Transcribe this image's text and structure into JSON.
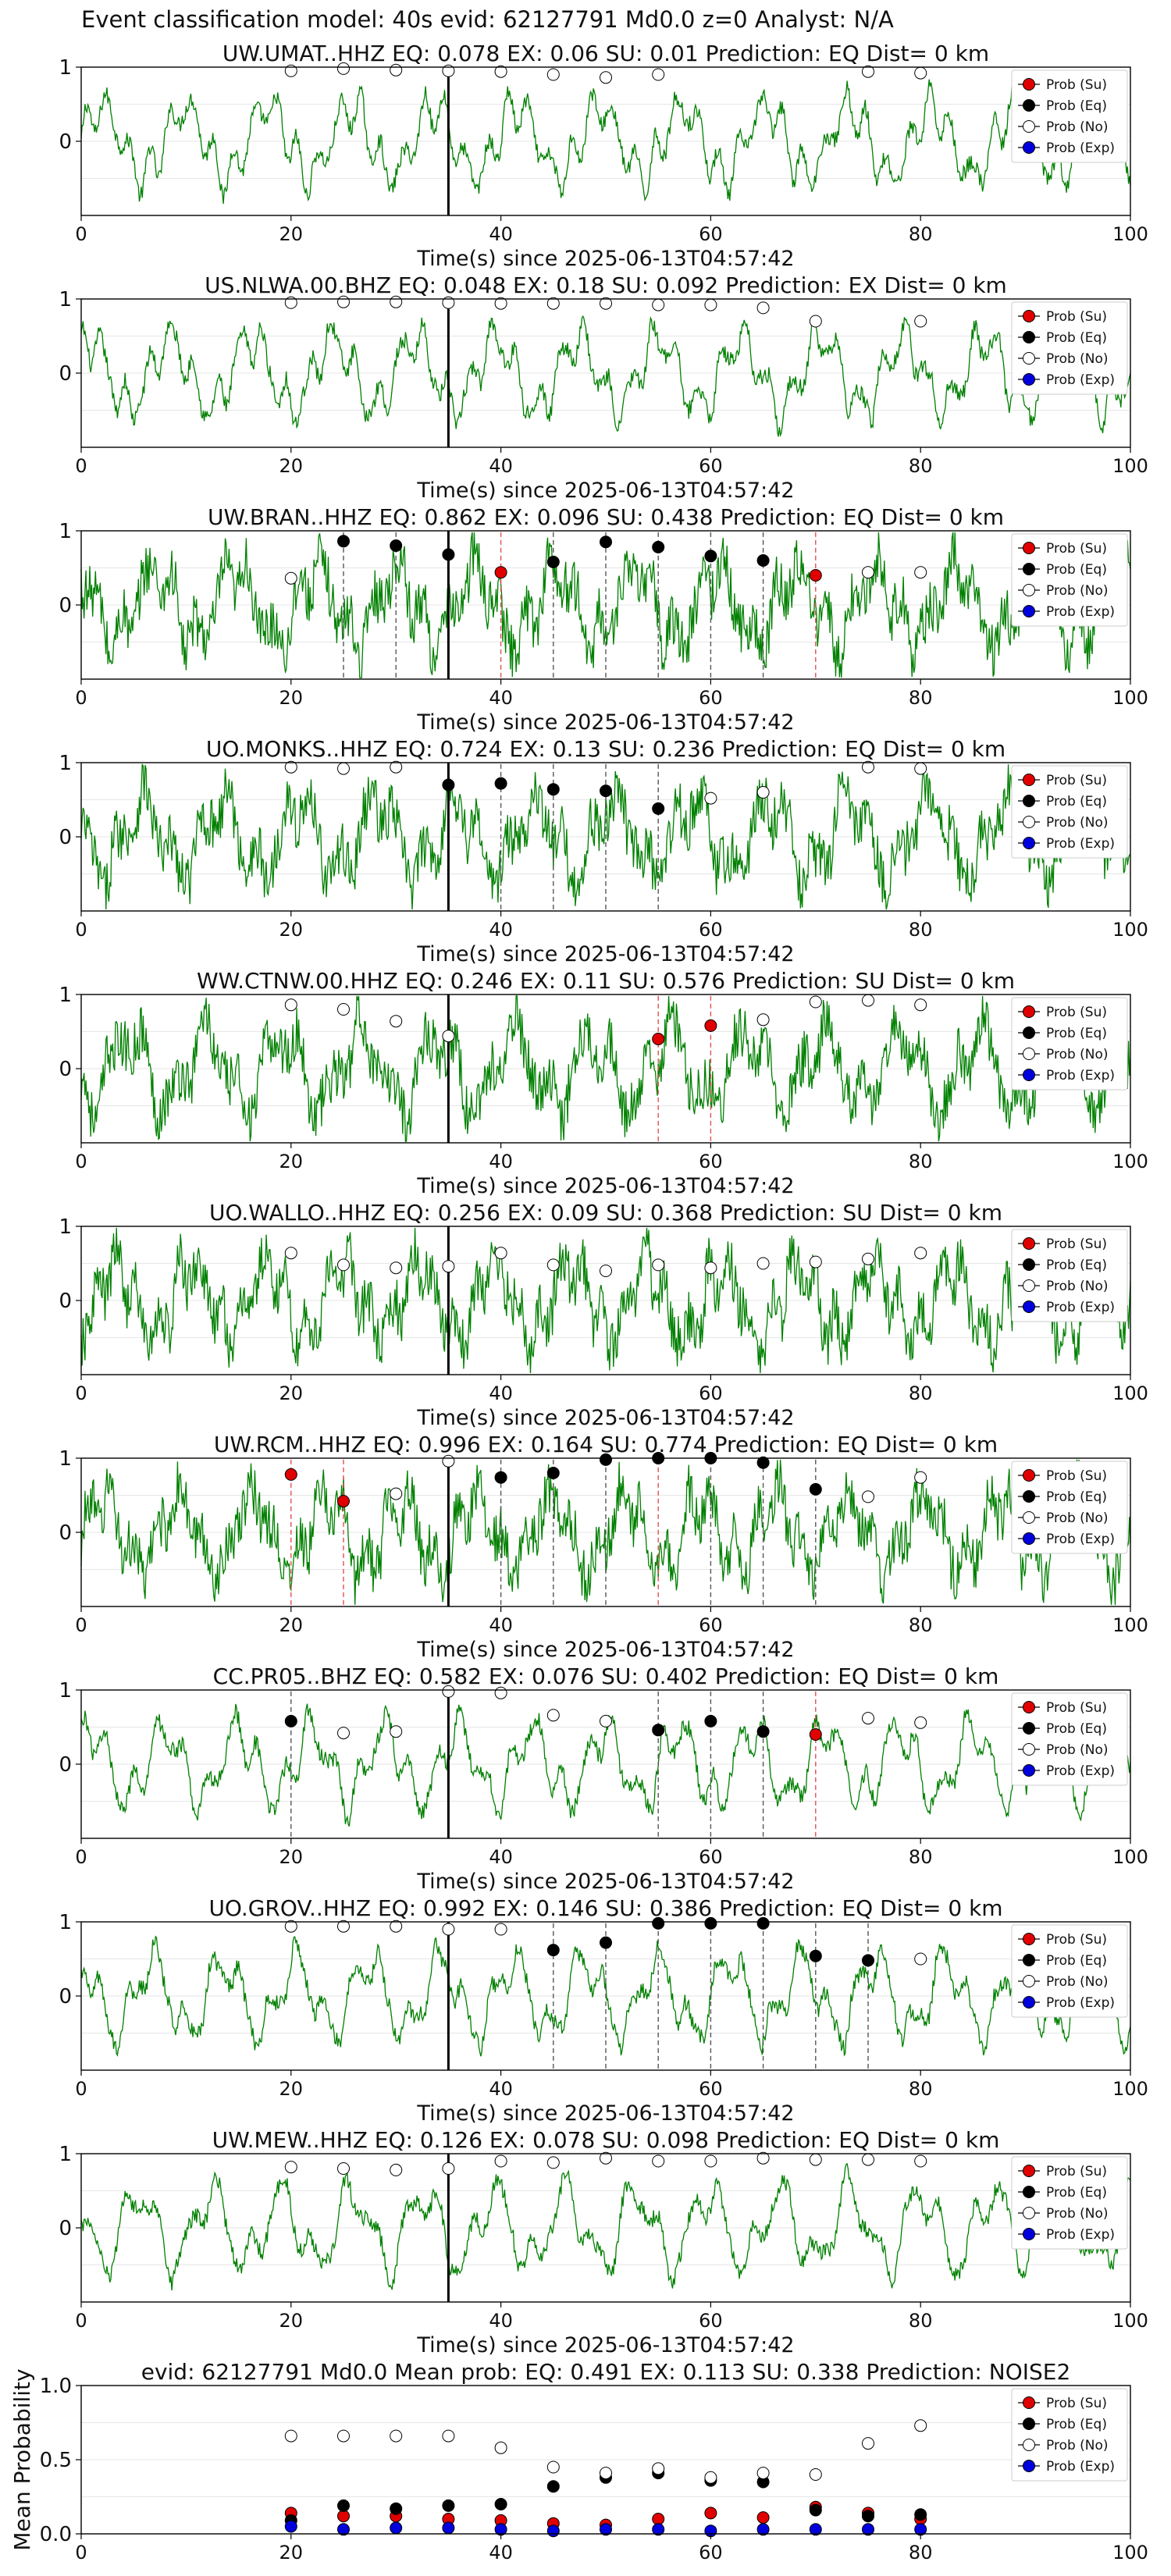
{
  "figure": {
    "suptitle": "Event classification model: 40s evid: 62127791 Md0.0 z=0 Analyst: N/A",
    "legend": [
      "Prob (Su)",
      "Prob (Eq)",
      "Prob (No)",
      "Prob (Exp)"
    ],
    "colors": {
      "trace": "#008000",
      "su": "#e00000",
      "eq": "#000000",
      "no": "#ffffff",
      "exp": "#0000dd"
    }
  },
  "chart_data": [
    {
      "type": "line",
      "title": "UW.UMAT..HHZ   EQ: 0.078  EX: 0.06  SU: 0.01   Prediction: EQ    Dist= 0 km",
      "xlabel": "Time(s) since 2025-06-13T04:57:42",
      "xlim": [
        0,
        100
      ],
      "ylim": [
        -1,
        1
      ],
      "xticks": [
        0,
        20,
        40,
        60,
        80,
        100
      ],
      "yticks": [
        0,
        1
      ],
      "grid": true,
      "legend": "top-right",
      "vline": 35,
      "points": [
        {
          "x": 20,
          "y": 0.95,
          "c": "no"
        },
        {
          "x": 25,
          "y": 0.98,
          "c": "no"
        },
        {
          "x": 30,
          "y": 0.96,
          "c": "no"
        },
        {
          "x": 35,
          "y": 0.95,
          "c": "no"
        },
        {
          "x": 40,
          "y": 0.94,
          "c": "no"
        },
        {
          "x": 45,
          "y": 0.9,
          "c": "no"
        },
        {
          "x": 50,
          "y": 0.86,
          "c": "no"
        },
        {
          "x": 55,
          "y": 0.9,
          "c": "no"
        },
        {
          "x": 75,
          "y": 0.94,
          "c": "no"
        },
        {
          "x": 80,
          "y": 0.92,
          "c": "no"
        }
      ],
      "dashed": []
    },
    {
      "type": "line",
      "title": "US.NLWA.00.BHZ   EQ: 0.048  EX: 0.18  SU: 0.092   Prediction: EX    Dist= 0 km",
      "xlabel": "Time(s) since 2025-06-13T04:57:42",
      "xlim": [
        0,
        100
      ],
      "ylim": [
        -1,
        1
      ],
      "xticks": [
        0,
        20,
        40,
        60,
        80,
        100
      ],
      "yticks": [
        0,
        1
      ],
      "grid": true,
      "legend": "top-right",
      "vline": 35,
      "points": [
        {
          "x": 20,
          "y": 0.95,
          "c": "no"
        },
        {
          "x": 25,
          "y": 0.96,
          "c": "no"
        },
        {
          "x": 30,
          "y": 0.96,
          "c": "no"
        },
        {
          "x": 35,
          "y": 0.95,
          "c": "no"
        },
        {
          "x": 40,
          "y": 0.94,
          "c": "no"
        },
        {
          "x": 45,
          "y": 0.94,
          "c": "no"
        },
        {
          "x": 50,
          "y": 0.94,
          "c": "no"
        },
        {
          "x": 55,
          "y": 0.92,
          "c": "no"
        },
        {
          "x": 60,
          "y": 0.92,
          "c": "no"
        },
        {
          "x": 65,
          "y": 0.88,
          "c": "no"
        },
        {
          "x": 70,
          "y": 0.7,
          "c": "no"
        },
        {
          "x": 80,
          "y": 0.7,
          "c": "no"
        }
      ],
      "dashed": []
    },
    {
      "type": "line",
      "title": "UW.BRAN..HHZ   EQ: 0.862  EX: 0.096  SU: 0.438   Prediction: EQ    Dist= 0 km",
      "xlabel": "Time(s) since 2025-06-13T04:57:42",
      "xlim": [
        0,
        100
      ],
      "ylim": [
        -1,
        1
      ],
      "xticks": [
        0,
        20,
        40,
        60,
        80,
        100
      ],
      "yticks": [
        0,
        1
      ],
      "grid": true,
      "legend": "top-right",
      "vline": 35,
      "points": [
        {
          "x": 20,
          "y": 0.36,
          "c": "no"
        },
        {
          "x": 25,
          "y": 0.86,
          "c": "eq"
        },
        {
          "x": 30,
          "y": 0.8,
          "c": "eq"
        },
        {
          "x": 35,
          "y": 0.68,
          "c": "eq"
        },
        {
          "x": 40,
          "y": 0.44,
          "c": "su"
        },
        {
          "x": 45,
          "y": 0.58,
          "c": "eq"
        },
        {
          "x": 50,
          "y": 0.85,
          "c": "eq"
        },
        {
          "x": 55,
          "y": 0.78,
          "c": "eq"
        },
        {
          "x": 60,
          "y": 0.66,
          "c": "eq"
        },
        {
          "x": 65,
          "y": 0.6,
          "c": "eq"
        },
        {
          "x": 70,
          "y": 0.4,
          "c": "su"
        },
        {
          "x": 75,
          "y": 0.44,
          "c": "no"
        },
        {
          "x": 80,
          "y": 0.44,
          "c": "no"
        }
      ],
      "dashed": [
        {
          "x": 25,
          "c": "eq"
        },
        {
          "x": 30,
          "c": "eq"
        },
        {
          "x": 40,
          "c": "su"
        },
        {
          "x": 45,
          "c": "eq"
        },
        {
          "x": 50,
          "c": "eq"
        },
        {
          "x": 55,
          "c": "eq"
        },
        {
          "x": 60,
          "c": "eq"
        },
        {
          "x": 65,
          "c": "eq"
        },
        {
          "x": 70,
          "c": "su"
        }
      ]
    },
    {
      "type": "line",
      "title": "UO.MONKS..HHZ   EQ: 0.724  EX: 0.13  SU: 0.236   Prediction: EQ    Dist= 0 km",
      "xlabel": "Time(s) since 2025-06-13T04:57:42",
      "xlim": [
        0,
        100
      ],
      "ylim": [
        -1,
        1
      ],
      "xticks": [
        0,
        20,
        40,
        60,
        80,
        100
      ],
      "yticks": [
        0,
        1
      ],
      "grid": true,
      "legend": "top-right",
      "vline": 35,
      "points": [
        {
          "x": 20,
          "y": 0.94,
          "c": "no"
        },
        {
          "x": 25,
          "y": 0.92,
          "c": "no"
        },
        {
          "x": 30,
          "y": 0.94,
          "c": "no"
        },
        {
          "x": 35,
          "y": 0.7,
          "c": "eq"
        },
        {
          "x": 40,
          "y": 0.72,
          "c": "eq"
        },
        {
          "x": 45,
          "y": 0.64,
          "c": "eq"
        },
        {
          "x": 50,
          "y": 0.62,
          "c": "eq"
        },
        {
          "x": 55,
          "y": 0.38,
          "c": "eq"
        },
        {
          "x": 60,
          "y": 0.52,
          "c": "no"
        },
        {
          "x": 65,
          "y": 0.6,
          "c": "no"
        },
        {
          "x": 75,
          "y": 0.94,
          "c": "no"
        },
        {
          "x": 80,
          "y": 0.92,
          "c": "no"
        }
      ],
      "dashed": [
        {
          "x": 40,
          "c": "eq"
        },
        {
          "x": 45,
          "c": "eq"
        },
        {
          "x": 50,
          "c": "eq"
        },
        {
          "x": 55,
          "c": "eq"
        }
      ]
    },
    {
      "type": "line",
      "title": "WW.CTNW.00.HHZ   EQ: 0.246  EX: 0.11  SU: 0.576   Prediction: SU    Dist= 0 km",
      "xlabel": "Time(s) since 2025-06-13T04:57:42",
      "xlim": [
        0,
        100
      ],
      "ylim": [
        -1,
        1
      ],
      "xticks": [
        0,
        20,
        40,
        60,
        80,
        100
      ],
      "yticks": [
        0,
        1
      ],
      "grid": true,
      "legend": "top-right",
      "vline": 35,
      "points": [
        {
          "x": 20,
          "y": 0.86,
          "c": "no"
        },
        {
          "x": 25,
          "y": 0.8,
          "c": "no"
        },
        {
          "x": 30,
          "y": 0.64,
          "c": "no"
        },
        {
          "x": 35,
          "y": 0.44,
          "c": "no"
        },
        {
          "x": 55,
          "y": 0.4,
          "c": "su"
        },
        {
          "x": 60,
          "y": 0.58,
          "c": "su"
        },
        {
          "x": 65,
          "y": 0.66,
          "c": "no"
        },
        {
          "x": 70,
          "y": 0.9,
          "c": "no"
        },
        {
          "x": 75,
          "y": 0.92,
          "c": "no"
        },
        {
          "x": 80,
          "y": 0.86,
          "c": "no"
        }
      ],
      "dashed": [
        {
          "x": 55,
          "c": "su"
        },
        {
          "x": 60,
          "c": "su"
        }
      ]
    },
    {
      "type": "line",
      "title": "UO.WALLO..HHZ   EQ: 0.256  EX: 0.09  SU: 0.368   Prediction: SU    Dist= 0 km",
      "xlabel": "Time(s) since 2025-06-13T04:57:42",
      "xlim": [
        0,
        100
      ],
      "ylim": [
        -1,
        1
      ],
      "xticks": [
        0,
        20,
        40,
        60,
        80,
        100
      ],
      "yticks": [
        0,
        1
      ],
      "grid": true,
      "legend": "top-right",
      "vline": 35,
      "points": [
        {
          "x": 20,
          "y": 0.64,
          "c": "no"
        },
        {
          "x": 25,
          "y": 0.48,
          "c": "no"
        },
        {
          "x": 30,
          "y": 0.44,
          "c": "no"
        },
        {
          "x": 35,
          "y": 0.46,
          "c": "no"
        },
        {
          "x": 40,
          "y": 0.64,
          "c": "no"
        },
        {
          "x": 45,
          "y": 0.48,
          "c": "no"
        },
        {
          "x": 50,
          "y": 0.4,
          "c": "no"
        },
        {
          "x": 55,
          "y": 0.48,
          "c": "no"
        },
        {
          "x": 60,
          "y": 0.44,
          "c": "no"
        },
        {
          "x": 65,
          "y": 0.5,
          "c": "no"
        },
        {
          "x": 70,
          "y": 0.52,
          "c": "no"
        },
        {
          "x": 75,
          "y": 0.56,
          "c": "no"
        },
        {
          "x": 80,
          "y": 0.64,
          "c": "no"
        }
      ],
      "dashed": []
    },
    {
      "type": "line",
      "title": "UW.RCM..HHZ   EQ: 0.996  EX: 0.164  SU: 0.774   Prediction: EQ    Dist= 0 km",
      "xlabel": "Time(s) since 2025-06-13T04:57:42",
      "xlim": [
        0,
        100
      ],
      "ylim": [
        -1,
        1
      ],
      "xticks": [
        0,
        20,
        40,
        60,
        80,
        100
      ],
      "yticks": [
        0,
        1
      ],
      "grid": true,
      "legend": "top-right",
      "vline": 35,
      "points": [
        {
          "x": 20,
          "y": 0.78,
          "c": "su"
        },
        {
          "x": 25,
          "y": 0.42,
          "c": "su"
        },
        {
          "x": 30,
          "y": 0.52,
          "c": "no"
        },
        {
          "x": 35,
          "y": 0.96,
          "c": "no"
        },
        {
          "x": 40,
          "y": 0.74,
          "c": "eq"
        },
        {
          "x": 45,
          "y": 0.8,
          "c": "eq"
        },
        {
          "x": 50,
          "y": 0.98,
          "c": "eq"
        },
        {
          "x": 55,
          "y": 1.0,
          "c": "eq"
        },
        {
          "x": 60,
          "y": 1.0,
          "c": "eq"
        },
        {
          "x": 65,
          "y": 0.94,
          "c": "eq"
        },
        {
          "x": 70,
          "y": 0.58,
          "c": "eq"
        },
        {
          "x": 75,
          "y": 0.48,
          "c": "no"
        },
        {
          "x": 80,
          "y": 0.74,
          "c": "no"
        }
      ],
      "dashed": [
        {
          "x": 20,
          "c": "su"
        },
        {
          "x": 25,
          "c": "su"
        },
        {
          "x": 40,
          "c": "eq"
        },
        {
          "x": 45,
          "c": "eq"
        },
        {
          "x": 50,
          "c": "eq"
        },
        {
          "x": 55,
          "c": "su"
        },
        {
          "x": 60,
          "c": "eq"
        },
        {
          "x": 65,
          "c": "eq"
        },
        {
          "x": 70,
          "c": "eq"
        }
      ]
    },
    {
      "type": "line",
      "title": "CC.PR05..BHZ   EQ: 0.582  EX: 0.076  SU: 0.402   Prediction: EQ    Dist= 0 km",
      "xlabel": "Time(s) since 2025-06-13T04:57:42",
      "xlim": [
        0,
        100
      ],
      "ylim": [
        -1,
        1
      ],
      "xticks": [
        0,
        20,
        40,
        60,
        80,
        100
      ],
      "yticks": [
        0,
        1
      ],
      "grid": true,
      "legend": "top-right",
      "vline": 35,
      "points": [
        {
          "x": 20,
          "y": 0.58,
          "c": "eq"
        },
        {
          "x": 25,
          "y": 0.42,
          "c": "no"
        },
        {
          "x": 30,
          "y": 0.44,
          "c": "no"
        },
        {
          "x": 35,
          "y": 0.98,
          "c": "no"
        },
        {
          "x": 40,
          "y": 0.96,
          "c": "no"
        },
        {
          "x": 45,
          "y": 0.66,
          "c": "no"
        },
        {
          "x": 50,
          "y": 0.58,
          "c": "no"
        },
        {
          "x": 55,
          "y": 0.46,
          "c": "eq"
        },
        {
          "x": 60,
          "y": 0.58,
          "c": "eq"
        },
        {
          "x": 65,
          "y": 0.44,
          "c": "eq"
        },
        {
          "x": 70,
          "y": 0.4,
          "c": "su"
        },
        {
          "x": 75,
          "y": 0.62,
          "c": "no"
        },
        {
          "x": 80,
          "y": 0.56,
          "c": "no"
        }
      ],
      "dashed": [
        {
          "x": 20,
          "c": "eq"
        },
        {
          "x": 55,
          "c": "eq"
        },
        {
          "x": 60,
          "c": "eq"
        },
        {
          "x": 65,
          "c": "eq"
        },
        {
          "x": 70,
          "c": "su"
        }
      ]
    },
    {
      "type": "line",
      "title": "UO.GROV..HHZ   EQ: 0.992  EX: 0.146  SU: 0.386   Prediction: EQ    Dist= 0 km",
      "xlabel": "Time(s) since 2025-06-13T04:57:42",
      "xlim": [
        0,
        100
      ],
      "ylim": [
        -1,
        1
      ],
      "xticks": [
        0,
        20,
        40,
        60,
        80,
        100
      ],
      "yticks": [
        0,
        1
      ],
      "grid": true,
      "legend": "top-right",
      "vline": 35,
      "points": [
        {
          "x": 20,
          "y": 0.94,
          "c": "no"
        },
        {
          "x": 25,
          "y": 0.94,
          "c": "no"
        },
        {
          "x": 30,
          "y": 0.94,
          "c": "no"
        },
        {
          "x": 35,
          "y": 0.9,
          "c": "no"
        },
        {
          "x": 40,
          "y": 0.9,
          "c": "no"
        },
        {
          "x": 45,
          "y": 0.62,
          "c": "eq"
        },
        {
          "x": 50,
          "y": 0.72,
          "c": "eq"
        },
        {
          "x": 55,
          "y": 0.98,
          "c": "eq"
        },
        {
          "x": 60,
          "y": 0.98,
          "c": "eq"
        },
        {
          "x": 65,
          "y": 0.98,
          "c": "eq"
        },
        {
          "x": 70,
          "y": 0.54,
          "c": "eq"
        },
        {
          "x": 75,
          "y": 0.48,
          "c": "eq"
        },
        {
          "x": 80,
          "y": 0.5,
          "c": "no"
        }
      ],
      "dashed": [
        {
          "x": 45,
          "c": "eq"
        },
        {
          "x": 50,
          "c": "eq"
        },
        {
          "x": 55,
          "c": "eq"
        },
        {
          "x": 60,
          "c": "eq"
        },
        {
          "x": 65,
          "c": "eq"
        },
        {
          "x": 70,
          "c": "eq"
        },
        {
          "x": 75,
          "c": "eq"
        }
      ]
    },
    {
      "type": "line",
      "title": "UW.MEW..HHZ   EQ: 0.126  EX: 0.078  SU: 0.098   Prediction: EQ    Dist= 0 km",
      "xlabel": "Time(s) since 2025-06-13T04:57:42",
      "xlim": [
        0,
        100
      ],
      "ylim": [
        -1,
        1
      ],
      "xticks": [
        0,
        20,
        40,
        60,
        80,
        100
      ],
      "yticks": [
        0,
        1
      ],
      "grid": true,
      "legend": "top-right",
      "vline": 35,
      "points": [
        {
          "x": 20,
          "y": 0.82,
          "c": "no"
        },
        {
          "x": 25,
          "y": 0.8,
          "c": "no"
        },
        {
          "x": 30,
          "y": 0.78,
          "c": "no"
        },
        {
          "x": 35,
          "y": 0.8,
          "c": "no"
        },
        {
          "x": 40,
          "y": 0.9,
          "c": "no"
        },
        {
          "x": 45,
          "y": 0.88,
          "c": "no"
        },
        {
          "x": 50,
          "y": 0.94,
          "c": "no"
        },
        {
          "x": 55,
          "y": 0.9,
          "c": "no"
        },
        {
          "x": 60,
          "y": 0.9,
          "c": "no"
        },
        {
          "x": 65,
          "y": 0.94,
          "c": "no"
        },
        {
          "x": 70,
          "y": 0.92,
          "c": "no"
        },
        {
          "x": 75,
          "y": 0.92,
          "c": "no"
        },
        {
          "x": 80,
          "y": 0.9,
          "c": "no"
        }
      ],
      "dashed": []
    },
    {
      "type": "scatter",
      "title": "evid: 62127791  Md0.0   Mean prob:   EQ: 0.491  EX: 0.113  SU: 0.338   Prediction: NOISE2",
      "xlabel": "",
      "ylabel": "Mean Probability",
      "xlim": [
        0,
        100
      ],
      "ylim": [
        0,
        1
      ],
      "xticks": [
        0,
        20,
        40,
        60,
        80,
        100
      ],
      "yticks": [
        0,
        0.5,
        1
      ],
      "ytick_labels": [
        "0.0",
        "0.5",
        "1.0"
      ],
      "grid": true,
      "legend": "top-right",
      "x": [
        20,
        25,
        30,
        35,
        40,
        45,
        50,
        55,
        60,
        65,
        70,
        75,
        80
      ],
      "series": [
        {
          "name": "Prob (Su)",
          "key": "su",
          "values": [
            0.14,
            0.12,
            0.12,
            0.1,
            0.09,
            0.07,
            0.06,
            0.1,
            0.14,
            0.11,
            0.18,
            0.14,
            0.1
          ]
        },
        {
          "name": "Prob (Eq)",
          "key": "eq",
          "values": [
            0.09,
            0.19,
            0.17,
            0.19,
            0.2,
            0.32,
            0.38,
            0.41,
            0.36,
            0.35,
            0.16,
            0.12,
            0.13
          ]
        },
        {
          "name": "Prob (No)",
          "key": "no",
          "values": [
            0.66,
            0.66,
            0.66,
            0.66,
            0.58,
            0.45,
            0.41,
            0.44,
            0.38,
            0.41,
            0.4,
            0.61,
            0.73
          ]
        },
        {
          "name": "Prob (Exp)",
          "key": "exp",
          "values": [
            0.05,
            0.03,
            0.04,
            0.04,
            0.03,
            0.02,
            0.03,
            0.03,
            0.02,
            0.03,
            0.03,
            0.03,
            0.03
          ]
        }
      ]
    }
  ]
}
